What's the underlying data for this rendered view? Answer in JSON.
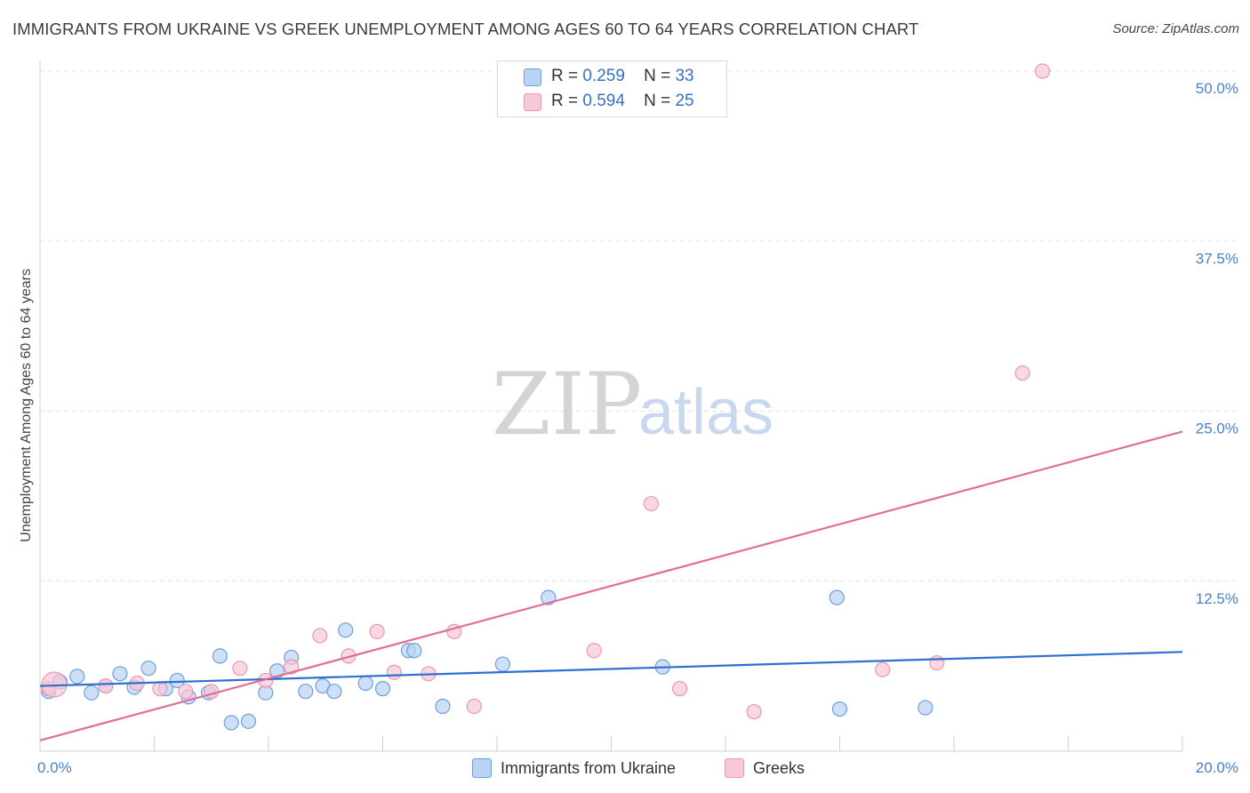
{
  "header": {
    "title": "IMMIGRANTS FROM UKRAINE VS GREEK UNEMPLOYMENT AMONG AGES 60 TO 64 YEARS CORRELATION CHART",
    "source": "Source: ZipAtlas.com"
  },
  "watermark": {
    "zip": "ZIP",
    "atlas": "atlas"
  },
  "legend": {
    "r_label": "R =",
    "n_label": "N =",
    "series": [
      {
        "name": "Immigrants from Ukraine",
        "r": "0.259",
        "n": "33"
      },
      {
        "name": "Greeks",
        "r": "0.594",
        "n": "25"
      }
    ]
  },
  "colors": {
    "ukraine_fill": "#b8d3f3",
    "ukraine_stroke": "#6f9fdc",
    "ukraine_line": "#2e6fd1",
    "greek_fill": "#f8c8d6",
    "greek_stroke": "#e89ab2",
    "greek_line": "#e06e98",
    "grid": "#e3e3e3",
    "tick_label": "#4a7fce"
  },
  "chart_data": {
    "type": "scatter",
    "title": "IMMIGRANTS FROM UKRAINE VS GREEK UNEMPLOYMENT AMONG AGES 60 TO 64 YEARS CORRELATION CHART",
    "xlabel": "",
    "ylabel": "Unemployment Among Ages 60 to 64 years",
    "xlim": [
      0,
      20
    ],
    "ylim": [
      0,
      50
    ],
    "x_tick_labels": [
      "0.0%",
      "20.0%"
    ],
    "y_ticks": [
      12.5,
      25.0,
      37.5,
      50.0
    ],
    "y_tick_labels": [
      "12.5%",
      "25.0%",
      "37.5%",
      "50.0%"
    ],
    "grid": true,
    "series": [
      {
        "name": "Immigrants from Ukraine",
        "r": 0.259,
        "n": 33,
        "trend": {
          "x": [
            0,
            20
          ],
          "y": [
            4.8,
            7.3
          ]
        },
        "points": [
          {
            "x": 0.15,
            "y": 4.4
          },
          {
            "x": 0.35,
            "y": 5.1
          },
          {
            "x": 0.65,
            "y": 5.5
          },
          {
            "x": 0.9,
            "y": 4.3
          },
          {
            "x": 1.15,
            "y": 4.8
          },
          {
            "x": 1.4,
            "y": 5.7
          },
          {
            "x": 1.65,
            "y": 4.7
          },
          {
            "x": 1.9,
            "y": 6.1
          },
          {
            "x": 2.2,
            "y": 4.6
          },
          {
            "x": 2.4,
            "y": 5.2
          },
          {
            "x": 2.6,
            "y": 4.0
          },
          {
            "x": 2.95,
            "y": 4.3
          },
          {
            "x": 3.15,
            "y": 7.0
          },
          {
            "x": 3.35,
            "y": 2.1
          },
          {
            "x": 3.65,
            "y": 2.2
          },
          {
            "x": 3.95,
            "y": 4.3
          },
          {
            "x": 4.15,
            "y": 5.9
          },
          {
            "x": 4.4,
            "y": 6.9
          },
          {
            "x": 4.65,
            "y": 4.4
          },
          {
            "x": 4.95,
            "y": 4.8
          },
          {
            "x": 5.15,
            "y": 4.4
          },
          {
            "x": 5.35,
            "y": 8.9
          },
          {
            "x": 5.7,
            "y": 5.0
          },
          {
            "x": 6.0,
            "y": 4.6
          },
          {
            "x": 6.45,
            "y": 7.4
          },
          {
            "x": 6.55,
            "y": 7.4
          },
          {
            "x": 7.05,
            "y": 3.3
          },
          {
            "x": 8.1,
            "y": 6.4
          },
          {
            "x": 8.9,
            "y": 11.3
          },
          {
            "x": 10.9,
            "y": 6.2
          },
          {
            "x": 13.95,
            "y": 11.3
          },
          {
            "x": 14.0,
            "y": 3.1
          },
          {
            "x": 15.5,
            "y": 3.2
          }
        ]
      },
      {
        "name": "Greeks",
        "r": 0.594,
        "n": 25,
        "trend": {
          "x": [
            0,
            20
          ],
          "y": [
            0.8,
            23.5
          ]
        },
        "points": [
          {
            "x": 0.15,
            "y": 4.6
          },
          {
            "x": 1.15,
            "y": 4.8
          },
          {
            "x": 1.7,
            "y": 5.0
          },
          {
            "x": 2.1,
            "y": 4.6
          },
          {
            "x": 2.55,
            "y": 4.4
          },
          {
            "x": 3.0,
            "y": 4.4
          },
          {
            "x": 3.5,
            "y": 6.1
          },
          {
            "x": 3.95,
            "y": 5.2
          },
          {
            "x": 4.4,
            "y": 6.2
          },
          {
            "x": 4.9,
            "y": 8.5
          },
          {
            "x": 5.4,
            "y": 7.0
          },
          {
            "x": 5.9,
            "y": 8.8
          },
          {
            "x": 6.2,
            "y": 5.8
          },
          {
            "x": 6.8,
            "y": 5.7
          },
          {
            "x": 7.25,
            "y": 8.8
          },
          {
            "x": 7.6,
            "y": 3.3
          },
          {
            "x": 9.7,
            "y": 7.4
          },
          {
            "x": 10.7,
            "y": 18.2
          },
          {
            "x": 11.2,
            "y": 4.6
          },
          {
            "x": 12.5,
            "y": 2.9
          },
          {
            "x": 14.75,
            "y": 6.0
          },
          {
            "x": 15.7,
            "y": 6.5
          },
          {
            "x": 17.2,
            "y": 27.8
          },
          {
            "x": 17.55,
            "y": 50.0
          },
          {
            "x": 0.25,
            "y": 4.9
          }
        ]
      }
    ]
  }
}
